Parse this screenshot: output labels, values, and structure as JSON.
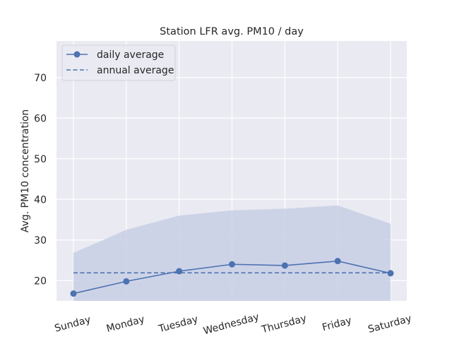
{
  "chart_data": {
    "type": "line",
    "title": "Station LFR avg. PM10 / day",
    "xlabel": "",
    "ylabel": "Avg. PM10 concentration",
    "categories": [
      "Sunday",
      "Monday",
      "Tuesday",
      "Wednesday",
      "Thursday",
      "Friday",
      "Saturday"
    ],
    "ylim": [
      15,
      79
    ],
    "yticks": [
      20,
      30,
      40,
      50,
      60,
      70
    ],
    "grid": true,
    "legend_position": "top-left",
    "series": [
      {
        "name": "daily average",
        "style": "solid-with-markers",
        "color": "#4c72b0",
        "values": [
          16.8,
          19.8,
          22.3,
          24.0,
          23.7,
          24.8,
          21.8
        ]
      },
      {
        "name": "annual average",
        "style": "dashed",
        "color": "#4c72b0",
        "values": [
          21.9,
          21.9,
          21.9,
          21.9,
          21.9,
          21.9,
          21.9
        ]
      }
    ],
    "band": {
      "color": "#4c72b0",
      "upper": [
        26.8,
        32.5,
        36.0,
        37.3,
        37.7,
        38.5,
        34.0
      ],
      "lower": [
        15,
        15,
        15,
        15,
        15,
        15,
        15
      ]
    },
    "colors": {
      "plot_background": "#eaeaf2",
      "grid": "#ffffff",
      "band_fill": "#c5cde3"
    }
  }
}
